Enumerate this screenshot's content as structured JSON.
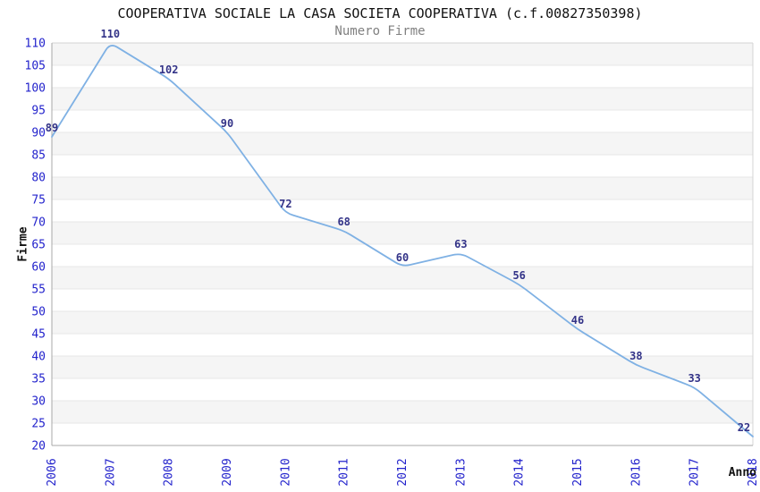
{
  "chart_data": {
    "type": "line",
    "title": "COOPERATIVA SOCIALE LA CASA SOCIETA COOPERATIVA (c.f.00827350398)",
    "subtitle": "Numero Firme",
    "xlabel": "Anno",
    "ylabel": "Firme",
    "categories": [
      "2006",
      "2007",
      "2008",
      "2009",
      "2010",
      "2011",
      "2012",
      "2013",
      "2014",
      "2015",
      "2016",
      "2017",
      "2018"
    ],
    "series": [
      {
        "name": "Numero Firme",
        "values": [
          89,
          110,
          102,
          90,
          72,
          68,
          60,
          63,
          56,
          46,
          38,
          33,
          22
        ]
      }
    ],
    "ylim": [
      20,
      110
    ],
    "ytick_step": 5,
    "grid": true,
    "alternating_bands": true,
    "legend_position": "none",
    "data_labels": true,
    "colors": {
      "line": "#7fb1e4",
      "band": "#f5f5f5",
      "gridline": "#e7e7e7",
      "border_light": "#d4d4d4",
      "axis_line": "#a8a8a8",
      "tick_label": "#2323cc",
      "data_label": "#333388",
      "title": "#111111",
      "subtitle": "#808080",
      "axis_title": "#111111",
      "background": "#ffffff"
    }
  }
}
